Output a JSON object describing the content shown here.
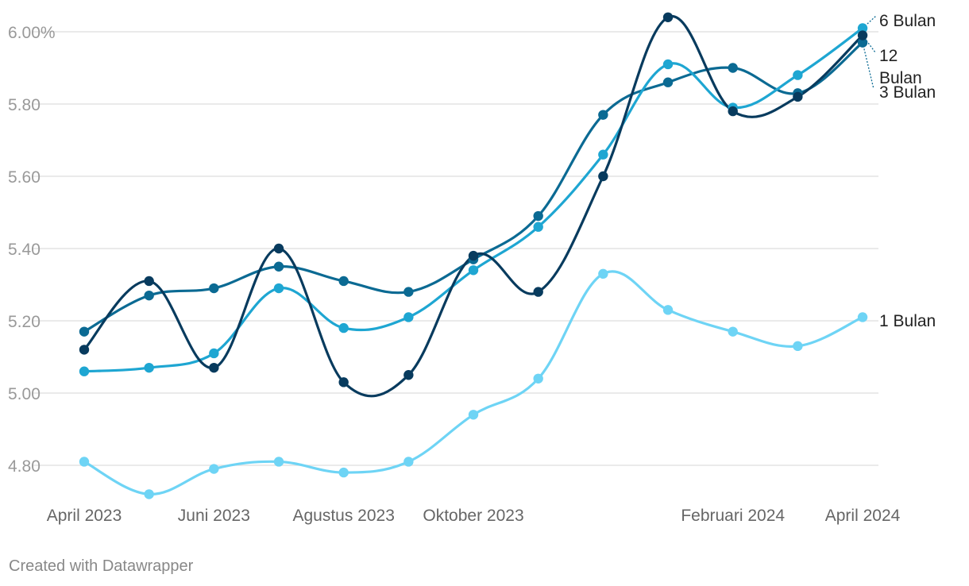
{
  "chart_data": {
    "type": "line",
    "x_tick_labels": [
      "April 2023",
      "Juni 2023",
      "Agustus 2023",
      "Oktober 2023",
      "Februari 2024",
      "April 2024"
    ],
    "x_tick_index": [
      0,
      2,
      4,
      6,
      10,
      12
    ],
    "y_tick_labels": [
      "6.00%",
      "5.80",
      "5.60",
      "5.40",
      "5.20",
      "5.00",
      "4.80"
    ],
    "y_ticks": [
      6.0,
      5.8,
      5.6,
      5.4,
      5.2,
      5.0,
      4.8
    ],
    "ylim": [
      4.72,
      6.08
    ],
    "grid": "horizontal",
    "series": [
      {
        "name": "1 Bulan",
        "color": "#6ed4f5",
        "values": [
          4.81,
          4.72,
          4.79,
          4.81,
          4.78,
          4.81,
          4.94,
          5.04,
          5.33,
          5.23,
          5.17,
          5.13,
          5.21
        ]
      },
      {
        "name": "3 Bulan",
        "color": "#0b6a93",
        "values": [
          5.17,
          5.27,
          5.29,
          5.35,
          5.31,
          5.28,
          5.37,
          5.49,
          5.77,
          5.86,
          5.9,
          5.83,
          5.97
        ]
      },
      {
        "name": "6 Bulan",
        "color": "#1ea6d2",
        "values": [
          5.06,
          5.07,
          5.11,
          5.29,
          5.18,
          5.21,
          5.34,
          5.46,
          5.66,
          5.91,
          5.79,
          5.88,
          6.01
        ]
      },
      {
        "name": "12 Bulan",
        "color": "#083b5e",
        "values": [
          5.12,
          5.31,
          5.07,
          5.4,
          5.03,
          5.05,
          5.38,
          5.28,
          5.6,
          6.04,
          5.78,
          5.82,
          5.99
        ]
      }
    ],
    "label_lines": [
      [
        "6 Bulan"
      ],
      [
        "12",
        "Bulan"
      ],
      [
        "3 Bulan"
      ],
      [
        "1 Bulan"
      ]
    ]
  },
  "footer": {
    "credit": "Created with Datawrapper"
  }
}
